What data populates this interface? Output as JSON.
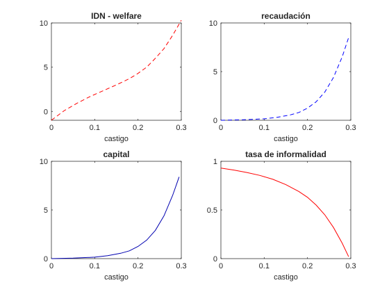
{
  "figure": {
    "background": "#ffffff"
  },
  "chart_data": [
    {
      "type": "line",
      "title": "IDN - welfare",
      "xlabel": "castigo",
      "ylabel": "",
      "xlim": [
        0,
        0.3
      ],
      "ylim": [
        -1,
        10
      ],
      "xticks": [
        0,
        0.1,
        0.2,
        0.3
      ],
      "xtick_labels": [
        "0",
        "0.1",
        "0.2",
        "0.3"
      ],
      "yticks": [
        0,
        5,
        10
      ],
      "ytick_labels": [
        "0",
        "5",
        "10"
      ],
      "grid": false,
      "series": [
        {
          "color": "#ff0000",
          "line_style": "dashed",
          "x": [
            0,
            0.03,
            0.06,
            0.09,
            0.12,
            0.15,
            0.18,
            0.2,
            0.22,
            0.24,
            0.26,
            0.28,
            0.3
          ],
          "values": [
            -1.0,
            0.1,
            0.95,
            1.7,
            2.35,
            3.0,
            3.7,
            4.3,
            5.0,
            6.0,
            7.1,
            8.6,
            10.3
          ]
        }
      ]
    },
    {
      "type": "line",
      "title": "recaudación",
      "xlabel": "castigo",
      "ylabel": "",
      "xlim": [
        0,
        0.3
      ],
      "ylim": [
        0,
        10
      ],
      "xticks": [
        0,
        0.1,
        0.2,
        0.3
      ],
      "xtick_labels": [
        "0",
        "0.1",
        "0.2",
        "0.3"
      ],
      "yticks": [
        0,
        5,
        10
      ],
      "ytick_labels": [
        "0",
        "5",
        "10"
      ],
      "grid": false,
      "series": [
        {
          "color": "#0000ff",
          "line_style": "dashed",
          "x": [
            0,
            0.05,
            0.1,
            0.13,
            0.16,
            0.18,
            0.2,
            0.22,
            0.24,
            0.26,
            0.28,
            0.295
          ],
          "values": [
            0,
            0.05,
            0.15,
            0.3,
            0.55,
            0.8,
            1.25,
            1.9,
            2.9,
            4.4,
            6.5,
            8.5
          ]
        }
      ]
    },
    {
      "type": "line",
      "title": "capital",
      "xlabel": "castigo",
      "ylabel": "",
      "xlim": [
        0,
        0.3
      ],
      "ylim": [
        0,
        10
      ],
      "xticks": [
        0,
        0.1,
        0.2,
        0.3
      ],
      "xtick_labels": [
        "0",
        "0.1",
        "0.2",
        "0.3"
      ],
      "yticks": [
        0,
        5,
        10
      ],
      "ytick_labels": [
        "0",
        "5",
        "10"
      ],
      "grid": false,
      "series": [
        {
          "color": "#0000b0",
          "line_style": "solid",
          "x": [
            0,
            0.05,
            0.1,
            0.13,
            0.16,
            0.18,
            0.2,
            0.22,
            0.24,
            0.26,
            0.28,
            0.295
          ],
          "values": [
            0,
            0.05,
            0.15,
            0.3,
            0.55,
            0.8,
            1.25,
            1.9,
            2.9,
            4.4,
            6.5,
            8.4
          ]
        }
      ]
    },
    {
      "type": "line",
      "title": "tasa de informalidad",
      "xlabel": "castigo",
      "ylabel": "",
      "xlim": [
        0,
        0.3
      ],
      "ylim": [
        0,
        1
      ],
      "xticks": [
        0,
        0.1,
        0.2,
        0.3
      ],
      "xtick_labels": [
        "0",
        "0.1",
        "0.2",
        "0.3"
      ],
      "yticks": [
        0,
        0.5,
        1
      ],
      "ytick_labels": [
        "0",
        "0.5",
        "1"
      ],
      "grid": false,
      "series": [
        {
          "color": "#ff0000",
          "line_style": "solid",
          "x": [
            0,
            0.03,
            0.06,
            0.09,
            0.12,
            0.15,
            0.18,
            0.2,
            0.22,
            0.24,
            0.26,
            0.28,
            0.295
          ],
          "values": [
            0.93,
            0.91,
            0.885,
            0.855,
            0.815,
            0.76,
            0.69,
            0.63,
            0.55,
            0.45,
            0.32,
            0.16,
            0.02
          ]
        }
      ]
    }
  ]
}
